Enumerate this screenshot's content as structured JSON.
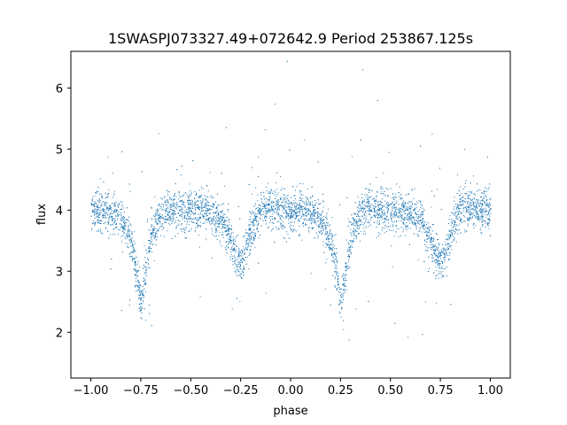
{
  "chart_data": {
    "type": "scatter",
    "title": "1SWASPJ073327.49+072642.9 Period 253867.125s",
    "xlabel": "phase",
    "ylabel": "flux",
    "xlim": [
      -1.1,
      1.1
    ],
    "ylim": [
      1.25,
      6.6
    ],
    "grid": false,
    "legend": "none",
    "x_ticks": [
      -1.0,
      -0.75,
      -0.5,
      -0.25,
      0.0,
      0.25,
      0.5,
      0.75,
      1.0
    ],
    "x_tick_labels": [
      "−1.00",
      "−0.75",
      "−0.50",
      "−0.25",
      "0.00",
      "0.25",
      "0.50",
      "0.75",
      "1.00"
    ],
    "y_ticks": [
      2,
      3,
      4,
      5,
      6
    ],
    "y_tick_labels": [
      "2",
      "3",
      "4",
      "5",
      "6"
    ],
    "point_color": "#1f77b4",
    "series": [
      {
        "description_curve": "phase-folded eclipsing binary light curve, two cycles",
        "phase": [
          -1.0,
          -0.95,
          -0.9,
          -0.85,
          -0.8,
          -0.77,
          -0.75,
          -0.73,
          -0.7,
          -0.65,
          -0.6,
          -0.55,
          -0.5,
          -0.45,
          -0.4,
          -0.35,
          -0.3,
          -0.27,
          -0.25,
          -0.23,
          -0.2,
          -0.15,
          -0.1,
          -0.05,
          0.0,
          0.05,
          0.1,
          0.15,
          0.2,
          0.23,
          0.25,
          0.27,
          0.3,
          0.35,
          0.4,
          0.45,
          0.5,
          0.55,
          0.6,
          0.65,
          0.7,
          0.73,
          0.75,
          0.77,
          0.8,
          0.85,
          0.9,
          0.95,
          1.0
        ],
        "flux": [
          4.0,
          4.0,
          3.95,
          3.85,
          3.5,
          2.9,
          2.5,
          2.9,
          3.6,
          3.95,
          4.05,
          4.0,
          4.0,
          4.0,
          3.95,
          3.85,
          3.5,
          3.2,
          3.15,
          3.3,
          3.7,
          4.0,
          4.05,
          4.0,
          4.0,
          4.0,
          3.95,
          3.85,
          3.5,
          2.9,
          2.5,
          2.9,
          3.6,
          3.95,
          4.05,
          4.0,
          4.0,
          4.0,
          3.95,
          3.85,
          3.5,
          3.2,
          3.15,
          3.3,
          3.7,
          4.0,
          4.05,
          4.0,
          4.0
        ]
      }
    ]
  }
}
